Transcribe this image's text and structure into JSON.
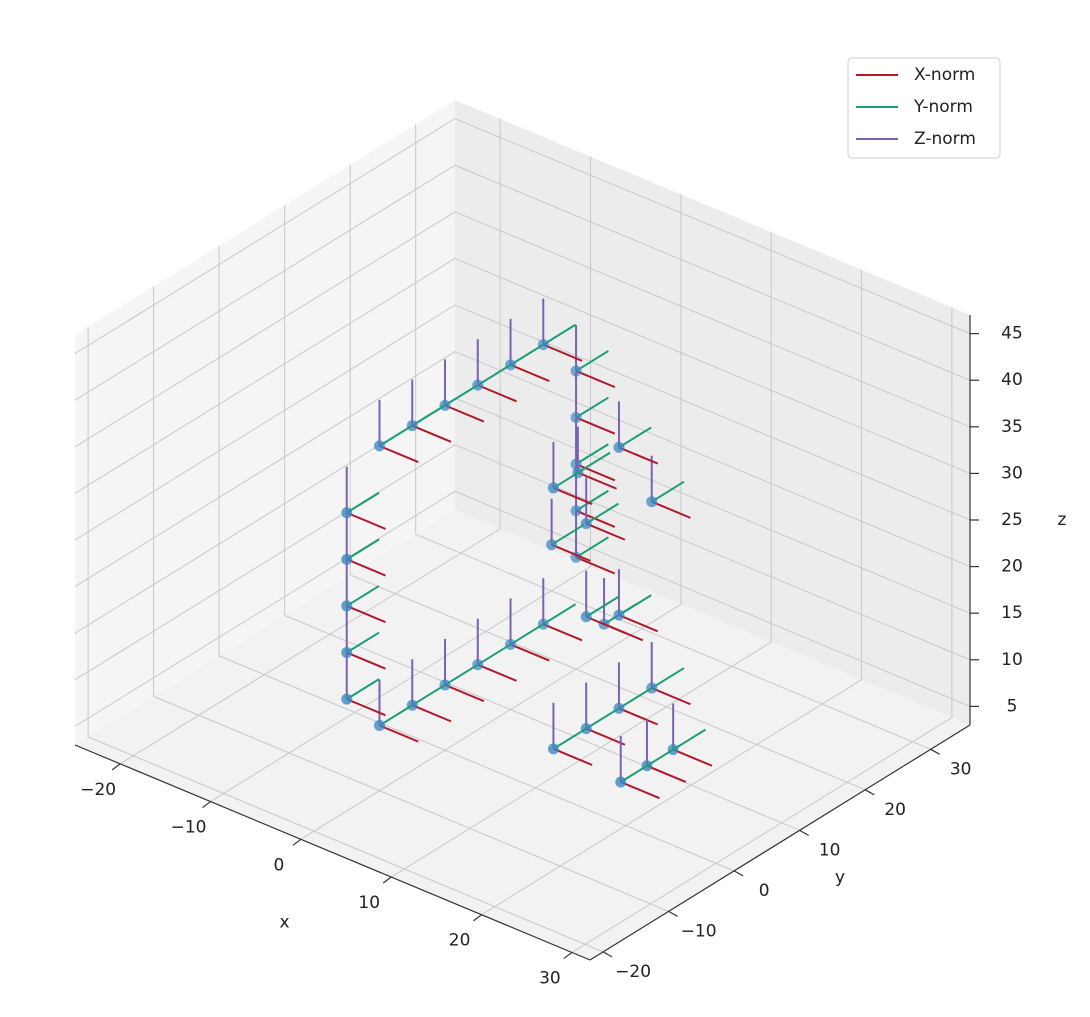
{
  "chart_data": {
    "type": "scatter3d",
    "x": [
      0,
      0,
      0,
      0,
      0,
      0,
      0,
      0,
      0,
      0,
      0,
      0,
      0,
      0,
      0,
      0,
      0,
      0,
      0,
      0,
      0,
      0,
      12,
      12,
      12,
      12,
      12,
      12,
      12,
      12,
      12,
      12,
      6,
      6,
      6,
      18,
      18,
      18
    ],
    "y": [
      -15,
      -15,
      -15,
      -15,
      -15,
      -10,
      -5,
      0,
      5,
      10,
      15,
      20,
      20,
      20,
      20,
      20,
      15,
      10,
      5,
      0,
      -5,
      -10,
      0,
      5,
      10,
      15,
      5,
      5,
      10,
      0,
      15,
      10,
      8,
      12,
      16,
      2,
      6,
      10
    ],
    "z": [
      15,
      20,
      25,
      30,
      35,
      40,
      40,
      40,
      40,
      40,
      40,
      35,
      30,
      25,
      20,
      15,
      10,
      10,
      10,
      10,
      10,
      10,
      8,
      8,
      8,
      8,
      20,
      30,
      36,
      36,
      28,
      18,
      24,
      30,
      12,
      6,
      6,
      6
    ],
    "color": "#3a86c0",
    "xlabel": "x",
    "ylabel": "y",
    "zlabel": "z",
    "xlim": [
      -25,
      32
    ],
    "ylim": [
      -22,
      36
    ],
    "zlim": [
      3,
      47
    ],
    "xticks": [
      {
        "value": -20,
        "label": "−20"
      },
      {
        "value": -10,
        "label": "−10"
      },
      0,
      10,
      20,
      30
    ],
    "yticks": [
      {
        "value": -20,
        "label": "−20"
      },
      {
        "value": -10,
        "label": "−10"
      },
      0,
      10,
      20,
      30
    ],
    "zticks": [
      5,
      10,
      15,
      20,
      25,
      30,
      35,
      40,
      45
    ],
    "grid": true,
    "legend": {
      "loc": "upper right",
      "entries": [
        {
          "name": "X-norm",
          "color": "#b2182b"
        },
        {
          "name": "Y-norm",
          "color": "#1b9e77"
        },
        {
          "name": "Z-norm",
          "color": "#7a62b0"
        }
      ]
    }
  }
}
